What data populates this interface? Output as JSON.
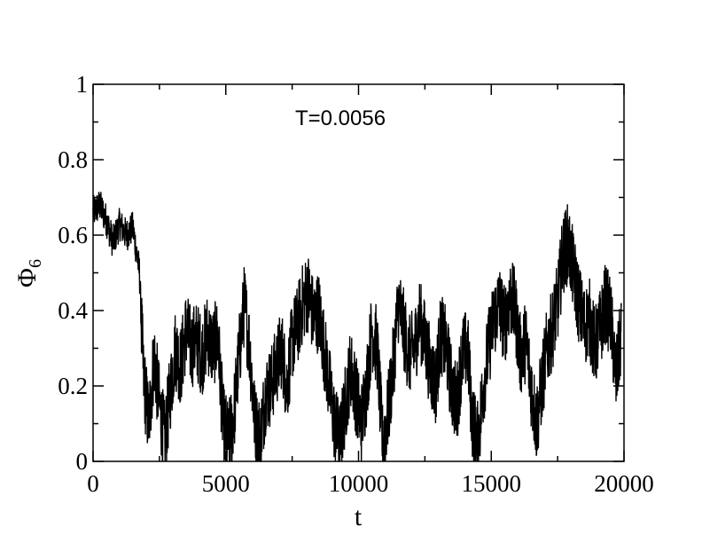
{
  "chart_data": {
    "type": "line",
    "xlabel": "t",
    "ylabel": "Φ",
    "ylabel_subscript": "6",
    "annotation": "T=0.0056",
    "xlim": [
      0,
      20000
    ],
    "ylim": [
      0,
      1
    ],
    "xticks": [
      0,
      5000,
      10000,
      15000,
      20000
    ],
    "xtick_labels": [
      "0",
      "5000",
      "10000",
      "15000",
      "20000"
    ],
    "yticks": [
      0,
      0.2,
      0.4,
      0.6,
      0.8,
      1
    ],
    "ytick_labels": [
      "0",
      "0.2",
      "0.4",
      "0.6",
      "0.8",
      "1"
    ],
    "grid": false,
    "line_color": "#000000",
    "series": [
      {
        "x": [
          0,
          250,
          500,
          750,
          1000,
          1250,
          1500,
          1750,
          1900,
          2100,
          2300,
          2500,
          2700,
          2900,
          3100,
          3300,
          3500,
          3700,
          3900,
          4100,
          4300,
          4500,
          4700,
          4900,
          5100,
          5300,
          5500,
          5700,
          5900,
          6100,
          6300,
          6500,
          6700,
          6900,
          7100,
          7300,
          7500,
          7700,
          7900,
          8100,
          8300,
          8500,
          8700,
          8900,
          9100,
          9300,
          9500,
          9700,
          9900,
          10100,
          10300,
          10500,
          10700,
          10900,
          11100,
          11300,
          11500,
          11700,
          11900,
          12100,
          12300,
          12500,
          12700,
          12900,
          13100,
          13300,
          13500,
          13700,
          13900,
          14100,
          14300,
          14500,
          14700,
          14900,
          15100,
          15300,
          15500,
          15700,
          15900,
          16100,
          16300,
          16500,
          16700,
          16900,
          17100,
          17300,
          17500,
          17700,
          17900,
          18100,
          18300,
          18500,
          18700,
          18900,
          19100,
          19300,
          19500,
          19700,
          19900
        ],
        "values": [
          0.66,
          0.68,
          0.64,
          0.58,
          0.63,
          0.6,
          0.62,
          0.5,
          0.22,
          0.1,
          0.28,
          0.15,
          0.05,
          0.18,
          0.3,
          0.25,
          0.35,
          0.3,
          0.32,
          0.28,
          0.34,
          0.3,
          0.33,
          0.1,
          0.05,
          0.12,
          0.28,
          0.42,
          0.3,
          0.1,
          0.06,
          0.18,
          0.2,
          0.25,
          0.3,
          0.2,
          0.32,
          0.36,
          0.42,
          0.45,
          0.38,
          0.4,
          0.3,
          0.2,
          0.1,
          0.05,
          0.15,
          0.25,
          0.18,
          0.1,
          0.2,
          0.35,
          0.3,
          0.05,
          0.12,
          0.25,
          0.42,
          0.35,
          0.28,
          0.3,
          0.38,
          0.32,
          0.25,
          0.2,
          0.34,
          0.3,
          0.2,
          0.15,
          0.28,
          0.3,
          0.1,
          0.05,
          0.2,
          0.3,
          0.38,
          0.42,
          0.36,
          0.44,
          0.4,
          0.28,
          0.32,
          0.2,
          0.1,
          0.2,
          0.3,
          0.35,
          0.42,
          0.55,
          0.58,
          0.5,
          0.42,
          0.36,
          0.38,
          0.3,
          0.35,
          0.42,
          0.38,
          0.22,
          0.34
        ]
      }
    ]
  }
}
